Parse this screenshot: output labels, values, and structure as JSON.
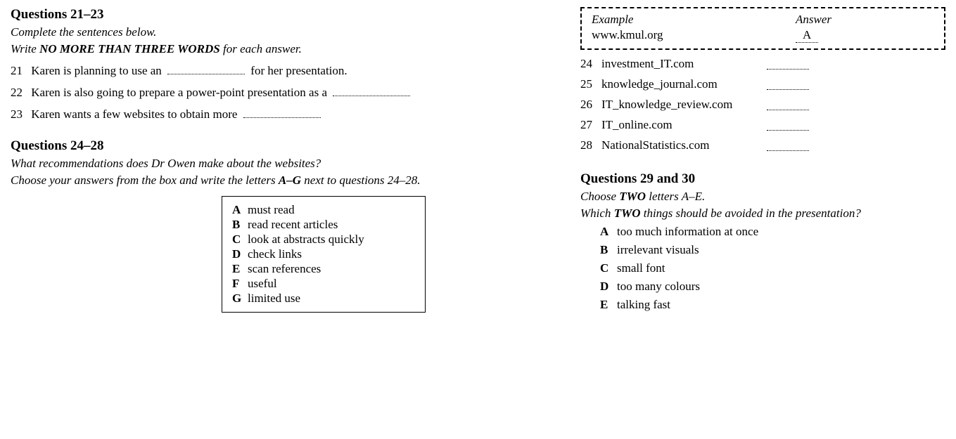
{
  "left": {
    "section1": {
      "heading": "Questions 21–23",
      "instr1": "Complete the sentences below.",
      "instr2_pre": "Write ",
      "instr2_bold": "NO MORE THAN THREE WORDS",
      "instr2_post": " for each answer.",
      "q21": {
        "num": "21",
        "pre": "Karen is planning to use an ",
        "post": " for her presentation."
      },
      "q22": {
        "num": "22",
        "pre": "Karen is also going to prepare a power-point presentation as a "
      },
      "q23": {
        "num": "23",
        "pre": "Karen wants a few websites to obtain more "
      }
    },
    "section2": {
      "heading": "Questions 24–28",
      "instr1": "What recommendations does Dr Owen make about the websites?",
      "instr2_pre": "Choose your answers from the box and write the letters ",
      "instr2_bold": "A–G",
      "instr2_post": " next to questions 24–28.",
      "options": [
        {
          "letter": "A",
          "text": "must read"
        },
        {
          "letter": "B",
          "text": "read recent articles"
        },
        {
          "letter": "C",
          "text": "look at abstracts quickly"
        },
        {
          "letter": "D",
          "text": "check links"
        },
        {
          "letter": "E",
          "text": "scan references"
        },
        {
          "letter": "F",
          "text": "useful"
        },
        {
          "letter": "G",
          "text": "limited use"
        }
      ]
    }
  },
  "right": {
    "example": {
      "label": "Example",
      "answer_label": "Answer",
      "site": "www.kmul.org",
      "answer": "A"
    },
    "sites": [
      {
        "num": "24",
        "site": "investment_IT.com"
      },
      {
        "num": "25",
        "site": "knowledge_journal.com"
      },
      {
        "num": "26",
        "site": "IT_knowledge_review.com"
      },
      {
        "num": "27",
        "site": "IT_online.com"
      },
      {
        "num": "28",
        "site": "NationalStatistics.com"
      }
    ],
    "section3": {
      "heading": "Questions 29 and 30",
      "instr1_pre": "Choose ",
      "instr1_bold": "TWO",
      "instr1_post": " letters A–E.",
      "instr2_pre": "Which ",
      "instr2_bold": "TWO",
      "instr2_post": " things should be avoided in the presentation?",
      "options": [
        {
          "letter": "A",
          "text": "too much information at once"
        },
        {
          "letter": "B",
          "text": "irrelevant visuals"
        },
        {
          "letter": "C",
          "text": "small font"
        },
        {
          "letter": "D",
          "text": "too many colours"
        },
        {
          "letter": "E",
          "text": "talking fast"
        }
      ]
    }
  }
}
